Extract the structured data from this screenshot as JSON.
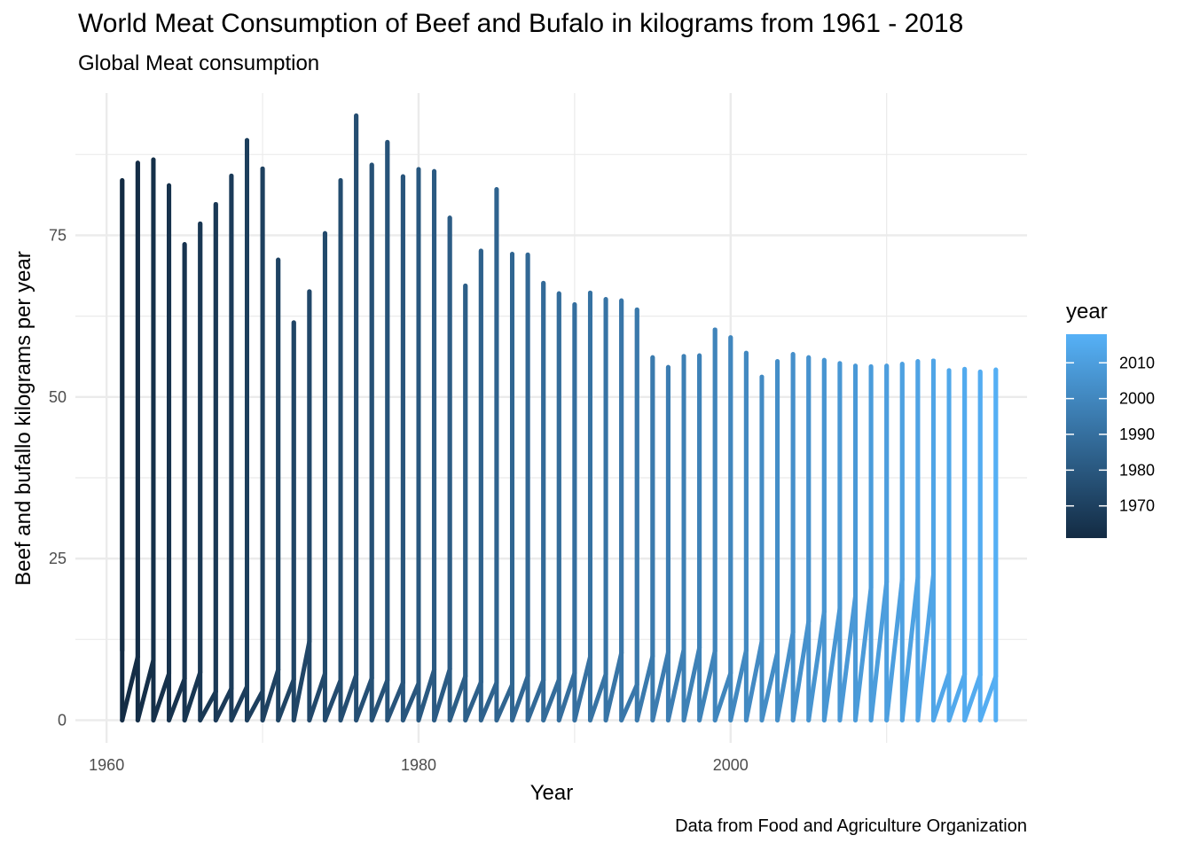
{
  "chart_data": {
    "type": "line",
    "title": "World Meat Consumption of Beef and Bufalo in kilograms from 1961 - 2018",
    "subtitle": "Global Meat consumption",
    "caption": "Data from Food and Agriculture Organization",
    "xlabel": "Year",
    "ylabel": "Beef and bufallo kilograms per year",
    "xlim": [
      1958,
      2019
    ],
    "ylim": [
      -3.5,
      97
    ],
    "x_ticks": [
      1960,
      1980,
      2000
    ],
    "y_ticks": [
      0,
      25,
      50,
      75
    ],
    "grid": true,
    "legend": {
      "title": "year",
      "position": "right",
      "range": [
        1961,
        2018
      ],
      "ticks": [
        1970,
        1980,
        1990,
        2000,
        2010
      ],
      "color_low": "#132B43",
      "color_high": "#56B1F7"
    },
    "years": [
      1961,
      1962,
      1963,
      1964,
      1965,
      1966,
      1967,
      1968,
      1969,
      1970,
      1971,
      1972,
      1973,
      1974,
      1975,
      1976,
      1977,
      1978,
      1979,
      1980,
      1981,
      1982,
      1983,
      1984,
      1985,
      1986,
      1987,
      1988,
      1989,
      1990,
      1991,
      1992,
      1993,
      1994,
      1995,
      1996,
      1997,
      1998,
      1999,
      2000,
      2001,
      2002,
      2003,
      2004,
      2005,
      2006,
      2007,
      2008,
      2009,
      2010,
      2011,
      2012,
      2013,
      2014,
      2015,
      2016,
      2017
    ],
    "max_values": [
      83.5,
      86.2,
      86.7,
      82.7,
      73.6,
      76.8,
      79.8,
      84.2,
      89.7,
      85.3,
      71.2,
      61.5,
      66.3,
      75.3,
      83.5,
      93.5,
      85.9,
      89.4,
      84.1,
      85.2,
      84.9,
      77.7,
      67.2,
      72.6,
      82.1,
      72.1,
      72.0,
      67.6,
      66.0,
      64.3,
      66.1,
      65.1,
      64.9,
      63.5,
      56.1,
      54.6,
      56.3,
      56.4,
      60.4,
      59.2,
      56.8,
      53.1,
      55.5,
      56.6,
      56.1,
      55.7,
      55.2,
      54.8,
      54.7,
      54.8,
      55.1,
      55.5,
      55.6,
      54.1,
      54.3,
      53.9,
      54.2
    ],
    "low_values": [
      10.8,
      9.8,
      9.3,
      7.2,
      6.4,
      7.4,
      4.4,
      4.9,
      5.2,
      4.5,
      7.8,
      6.3,
      12.2,
      7.2,
      6.2,
      7.0,
      6.5,
      6.2,
      5.8,
      5.7,
      7.8,
      7.9,
      6.8,
      5.9,
      5.8,
      5.5,
      6.8,
      6.2,
      6.3,
      7.3,
      9.8,
      7.1,
      10.4,
      5.5,
      9.9,
      10.5,
      10.9,
      11.2,
      10.7,
      7.3,
      10.8,
      12.2,
      10.5,
      13.6,
      15.3,
      16.8,
      17.3,
      19.2,
      20.5,
      21.4,
      21.8,
      22.1,
      22.5,
      7.3,
      7.1,
      7.0,
      6.8
    ]
  }
}
